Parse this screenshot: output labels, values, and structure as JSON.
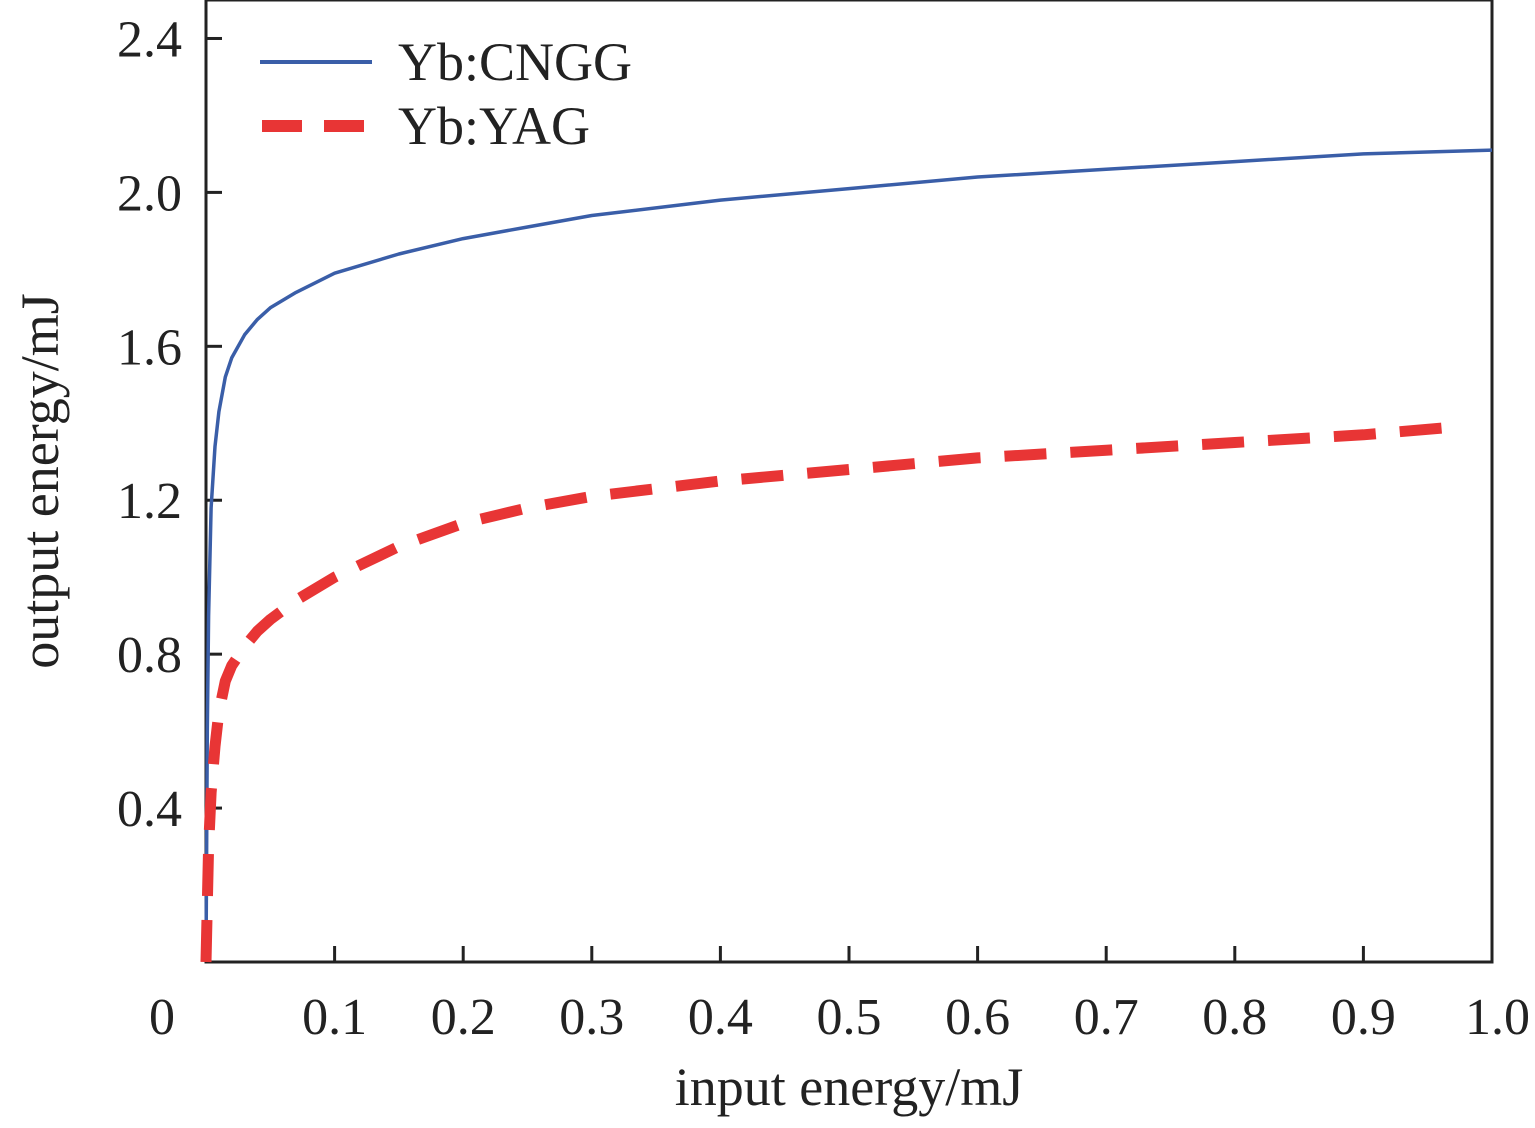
{
  "chart_data": {
    "type": "line",
    "xlabel": "input energy/mJ",
    "ylabel": "output energy/mJ",
    "xlim": [
      0,
      1.0
    ],
    "ylim": [
      0,
      2.5
    ],
    "x_ticks": [
      0.1,
      0.2,
      0.3,
      0.4,
      0.5,
      0.6,
      0.7,
      0.8,
      0.9,
      1.0
    ],
    "x_tick_labels": [
      "0.1",
      "0.2",
      "0.3",
      "0.4",
      "0.5",
      "0.6",
      "0.7",
      "0.8",
      "0.9",
      "1.0"
    ],
    "x_origin_label": "0",
    "y_ticks": [
      0.4,
      0.8,
      1.2,
      1.6,
      2.0,
      2.4
    ],
    "y_tick_labels": [
      "0.4",
      "0.8",
      "1.2",
      "1.6",
      "2.0",
      "2.4"
    ],
    "grid": false,
    "legend_position": "top-left",
    "series": [
      {
        "name": "Yb:CNGG",
        "color": "#3a5ea8",
        "style": "solid",
        "x": [
          0,
          0.001,
          0.002,
          0.004,
          0.007,
          0.01,
          0.015,
          0.02,
          0.03,
          0.04,
          0.05,
          0.07,
          0.1,
          0.15,
          0.2,
          0.25,
          0.3,
          0.4,
          0.5,
          0.6,
          0.7,
          0.8,
          0.9,
          1.0
        ],
        "y": [
          0,
          0.6,
          0.9,
          1.18,
          1.34,
          1.43,
          1.52,
          1.57,
          1.63,
          1.67,
          1.7,
          1.74,
          1.79,
          1.84,
          1.88,
          1.91,
          1.94,
          1.98,
          2.01,
          2.04,
          2.06,
          2.08,
          2.1,
          2.11
        ]
      },
      {
        "name": "Yb:YAG",
        "color": "#e83535",
        "style": "dashed",
        "x": [
          0,
          0.002,
          0.004,
          0.007,
          0.01,
          0.015,
          0.02,
          0.03,
          0.04,
          0.05,
          0.07,
          0.1,
          0.15,
          0.2,
          0.25,
          0.3,
          0.4,
          0.5,
          0.6,
          0.7,
          0.8,
          0.9,
          0.97
        ],
        "y": [
          0,
          0.3,
          0.44,
          0.56,
          0.65,
          0.73,
          0.77,
          0.82,
          0.86,
          0.89,
          0.94,
          1.0,
          1.08,
          1.14,
          1.18,
          1.21,
          1.25,
          1.28,
          1.31,
          1.33,
          1.35,
          1.37,
          1.39
        ]
      }
    ]
  }
}
